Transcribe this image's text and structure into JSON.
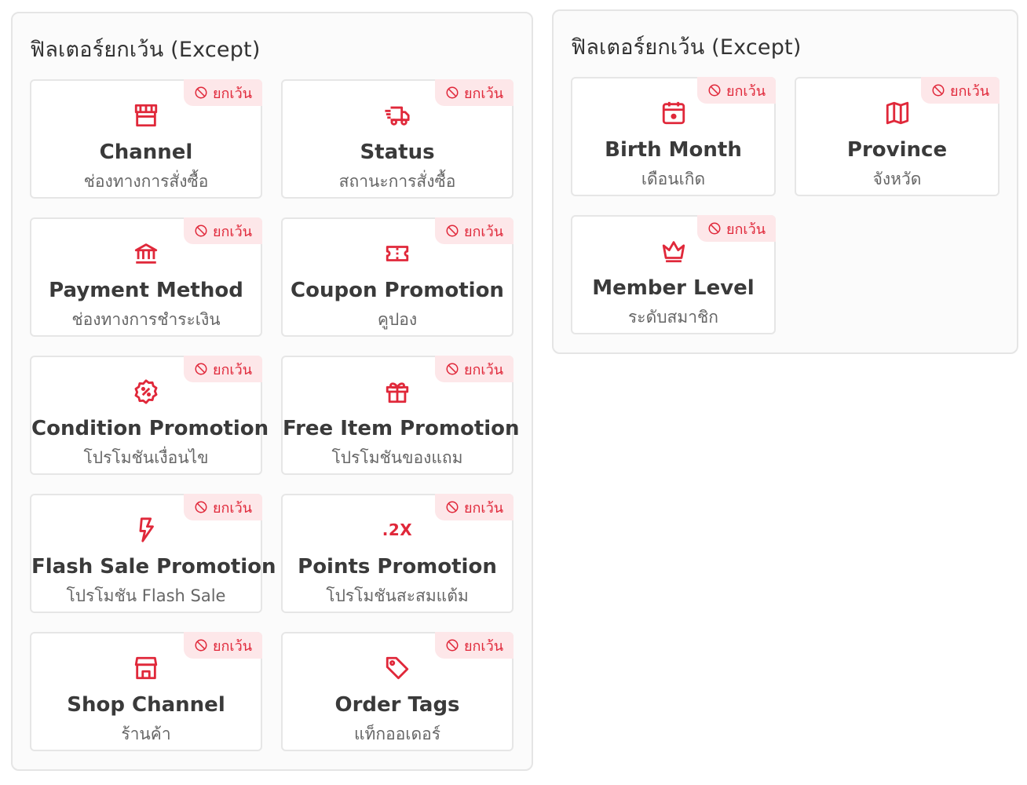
{
  "left_panel": {
    "title": "ฟิลเตอร์ยกเว้น (Except)",
    "badge_label": "ยกเว้น",
    "cards": [
      {
        "title": "Channel",
        "subtitle": "ช่องทางการสั่งซื้อ",
        "icon": "store-icon"
      },
      {
        "title": "Status",
        "subtitle": "สถานะการสั่งซื้อ",
        "icon": "truck-icon"
      },
      {
        "title": "Payment Method",
        "subtitle": "ช่องทางการชำระเงิน",
        "icon": "bank-icon"
      },
      {
        "title": "Coupon Promotion",
        "subtitle": "คูปอง",
        "icon": "ticket-icon"
      },
      {
        "title": "Condition Promotion",
        "subtitle": "โปรโมชันเงื่อนไข",
        "icon": "discount-badge-icon"
      },
      {
        "title": "Free Item Promotion",
        "subtitle": "โปรโมชันของแถม",
        "icon": "gift-icon"
      },
      {
        "title": "Flash Sale Promotion",
        "subtitle": "โปรโมชัน Flash Sale",
        "icon": "lightning-icon"
      },
      {
        "title": "Points Promotion",
        "subtitle": "โปรโมชันสะสมแต้ม",
        "icon": "multiplier-icon",
        "icon_text": ".2X"
      },
      {
        "title": "Shop Channel",
        "subtitle": "ร้านค้า",
        "icon": "shop-icon"
      },
      {
        "title": "Order Tags",
        "subtitle": "แท็กออเดอร์",
        "icon": "tag-icon"
      }
    ]
  },
  "right_panel": {
    "title": "ฟิลเตอร์ยกเว้น (Except)",
    "badge_label": "ยกเว้น",
    "cards": [
      {
        "title": "Birth Month",
        "subtitle": "เดือนเกิด",
        "icon": "calendar-icon"
      },
      {
        "title": "Province",
        "subtitle": "จังหวัด",
        "icon": "map-icon"
      },
      {
        "title": "Member Level",
        "subtitle": "ระดับสมาชิก",
        "icon": "crown-icon"
      }
    ]
  },
  "colors": {
    "accent": "#e0283a",
    "badge_bg": "#fde7e9"
  }
}
